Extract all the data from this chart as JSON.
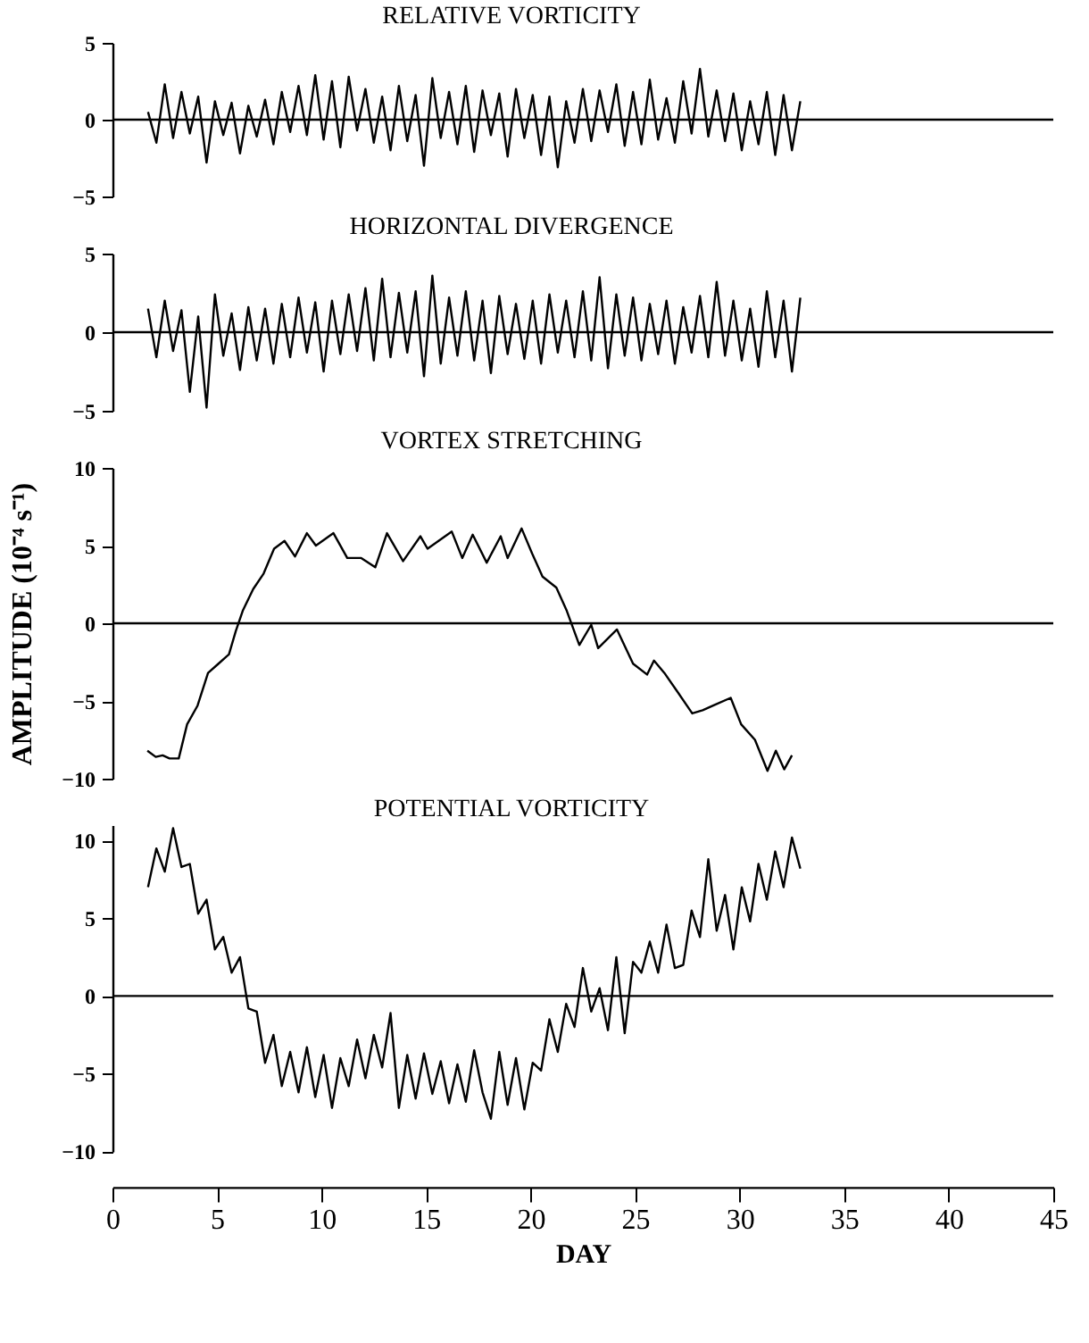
{
  "chart_data": [
    {
      "type": "line",
      "title": "RELATIVE VORTICITY",
      "xlim": [
        0,
        45
      ],
      "ylim": [
        -5,
        5
      ],
      "yticks": [
        -5,
        0,
        5
      ],
      "tick_labels": "y",
      "ref_lines": [
        {
          "axis": "y",
          "value": 0,
          "label": null,
          "color": "#000000"
        }
      ],
      "x": [
        1.7,
        2.1,
        2.5,
        2.9,
        3.3,
        3.7,
        4.1,
        4.5,
        4.9,
        5.3,
        5.7,
        6.1,
        6.5,
        6.9,
        7.3,
        7.7,
        8.1,
        8.5,
        8.9,
        9.3,
        9.7,
        10.1,
        10.5,
        10.9,
        11.3,
        11.7,
        12.1,
        12.5,
        12.9,
        13.3,
        13.7,
        14.1,
        14.5,
        14.9,
        15.3,
        15.7,
        16.1,
        16.5,
        16.9,
        17.3,
        17.7,
        18.1,
        18.5,
        18.9,
        19.3,
        19.7,
        20.1,
        20.5,
        20.9,
        21.3,
        21.7,
        22.1,
        22.5,
        22.9,
        23.3,
        23.7,
        24.1,
        24.5,
        24.9,
        25.3,
        25.7,
        26.1,
        26.5,
        26.9,
        27.3,
        27.7,
        28.1,
        28.5,
        28.9,
        29.3,
        29.7,
        30.1,
        30.5,
        30.9,
        31.3,
        31.7,
        32.1,
        32.5,
        32.9
      ],
      "series": [
        {
          "color": "#000000",
          "values": [
            0.5,
            -1.5,
            2.3,
            -1.2,
            1.8,
            -0.9,
            1.5,
            -2.8,
            1.2,
            -1.0,
            1.1,
            -2.2,
            0.9,
            -1.1,
            1.3,
            -1.6,
            1.8,
            -0.8,
            2.2,
            -1.0,
            2.9,
            -1.3,
            2.5,
            -1.8,
            2.8,
            -0.7,
            2.0,
            -1.5,
            1.5,
            -2.0,
            2.2,
            -1.4,
            1.6,
            -3.0,
            2.7,
            -1.2,
            1.8,
            -1.6,
            2.2,
            -2.1,
            1.9,
            -1.0,
            1.7,
            -2.4,
            2.0,
            -1.2,
            1.6,
            -2.3,
            1.5,
            -3.1,
            1.2,
            -1.5,
            2.0,
            -1.4,
            1.9,
            -0.8,
            2.3,
            -1.7,
            1.8,
            -1.6,
            2.6,
            -1.3,
            1.4,
            -1.5,
            2.5,
            -0.9,
            3.3,
            -1.1,
            1.9,
            -1.4,
            1.7,
            -2.0,
            1.2,
            -1.6,
            1.8,
            -2.3,
            1.6,
            -2.0,
            1.2
          ]
        }
      ]
    },
    {
      "type": "line",
      "title": "HORIZONTAL DIVERGENCE",
      "xlim": [
        0,
        45
      ],
      "ylim": [
        -5,
        5
      ],
      "yticks": [
        -5,
        0,
        5
      ],
      "tick_labels": "y",
      "ref_lines": [
        {
          "axis": "y",
          "value": 0,
          "label": null,
          "color": "#000000"
        }
      ],
      "x": [
        1.7,
        2.1,
        2.5,
        2.9,
        3.3,
        3.7,
        4.1,
        4.5,
        4.9,
        5.3,
        5.7,
        6.1,
        6.5,
        6.9,
        7.3,
        7.7,
        8.1,
        8.5,
        8.9,
        9.3,
        9.7,
        10.1,
        10.5,
        10.9,
        11.3,
        11.7,
        12.1,
        12.5,
        12.9,
        13.3,
        13.7,
        14.1,
        14.5,
        14.9,
        15.3,
        15.7,
        16.1,
        16.5,
        16.9,
        17.3,
        17.7,
        18.1,
        18.5,
        18.9,
        19.3,
        19.7,
        20.1,
        20.5,
        20.9,
        21.3,
        21.7,
        22.1,
        22.5,
        22.9,
        23.3,
        23.7,
        24.1,
        24.5,
        24.9,
        25.3,
        25.7,
        26.1,
        26.5,
        26.9,
        27.3,
        27.7,
        28.1,
        28.5,
        28.9,
        29.3,
        29.7,
        30.1,
        30.5,
        30.9,
        31.3,
        31.7,
        32.1,
        32.5,
        32.9
      ],
      "series": [
        {
          "color": "#000000",
          "values": [
            1.5,
            -1.6,
            2.0,
            -1.2,
            1.4,
            -3.8,
            1.0,
            -4.8,
            2.4,
            -1.5,
            1.2,
            -2.4,
            1.6,
            -1.8,
            1.5,
            -2.0,
            1.8,
            -1.6,
            2.2,
            -1.3,
            1.9,
            -2.5,
            2.0,
            -1.4,
            2.4,
            -1.2,
            2.8,
            -1.8,
            3.4,
            -1.6,
            2.5,
            -1.3,
            2.6,
            -2.8,
            3.6,
            -2.0,
            2.2,
            -1.5,
            2.6,
            -1.8,
            2.0,
            -2.6,
            2.3,
            -1.4,
            1.8,
            -1.7,
            2.0,
            -2.0,
            2.4,
            -1.3,
            2.0,
            -1.6,
            2.6,
            -1.8,
            3.5,
            -2.3,
            2.4,
            -1.5,
            2.2,
            -1.8,
            1.8,
            -1.4,
            2.0,
            -2.0,
            1.6,
            -1.3,
            2.3,
            -1.6,
            3.2,
            -1.5,
            2.0,
            -1.8,
            1.5,
            -2.2,
            2.6,
            -1.6,
            2.0,
            -2.5,
            2.2
          ]
        }
      ]
    },
    {
      "type": "line",
      "title": "VORTEX STRETCHING",
      "ylabel": "AMPLITUDE (10⁻⁴ s⁻¹)",
      "xlim": [
        0,
        45
      ],
      "ylim": [
        -10,
        10
      ],
      "yticks": [
        -10,
        -5,
        0,
        5,
        10
      ],
      "tick_labels": "y",
      "ref_lines": [
        {
          "axis": "y",
          "value": 0,
          "label": null,
          "color": "#000000"
        }
      ],
      "x": [
        1.67,
        2.07,
        2.4,
        2.73,
        3.17,
        3.57,
        4.07,
        4.57,
        5.07,
        5.57,
        5.9,
        6.23,
        6.73,
        7.23,
        7.73,
        8.23,
        8.73,
        9.3,
        9.73,
        10.57,
        11.23,
        11.9,
        12.57,
        13.13,
        13.9,
        14.73,
        15.07,
        16.23,
        16.73,
        17.23,
        17.9,
        18.57,
        18.9,
        19.57,
        20.07,
        20.57,
        21.23,
        21.73,
        22.33,
        22.9,
        23.23,
        24.13,
        24.9,
        25.57,
        25.9,
        26.4,
        27.07,
        27.73,
        28.23,
        28.73,
        29.57,
        30.07,
        30.73,
        31.33,
        31.73,
        32.13,
        32.5
      ],
      "series": [
        {
          "color": "#000000",
          "values": [
            -8.2,
            -8.6,
            -8.5,
            -8.7,
            -8.7,
            -6.5,
            -5.3,
            -3.2,
            -2.6,
            -2.0,
            -0.5,
            0.8,
            2.2,
            3.2,
            4.8,
            5.3,
            4.3,
            5.8,
            5.0,
            5.8,
            4.2,
            4.2,
            3.6,
            5.8,
            4.0,
            5.6,
            4.8,
            5.9,
            4.2,
            5.7,
            3.9,
            5.6,
            4.2,
            6.1,
            4.5,
            3.0,
            2.3,
            0.8,
            -1.4,
            -0.1,
            -1.6,
            -0.4,
            -2.6,
            -3.3,
            -2.4,
            -3.2,
            -4.5,
            -5.8,
            -5.6,
            -5.3,
            -4.8,
            -6.5,
            -7.5,
            -9.5,
            -8.2,
            -9.4,
            -8.5
          ]
        }
      ]
    },
    {
      "type": "line",
      "title": "POTENTIAL VORTICITY",
      "xlabel": "DAY",
      "xlim": [
        0,
        45
      ],
      "xticks": [
        0,
        5,
        10,
        15,
        20,
        25,
        30,
        35,
        40,
        45
      ],
      "ylim": [
        -10,
        11
      ],
      "yticks": [
        -10,
        -5,
        0,
        5,
        10
      ],
      "ref_lines": [
        {
          "axis": "y",
          "value": 0,
          "label": null,
          "color": "#000000"
        }
      ],
      "x": [
        1.7,
        2.1,
        2.5,
        2.9,
        3.3,
        3.7,
        4.1,
        4.5,
        4.9,
        5.3,
        5.7,
        6.1,
        6.5,
        6.9,
        7.3,
        7.7,
        8.1,
        8.5,
        8.9,
        9.3,
        9.7,
        10.1,
        10.5,
        10.9,
        11.3,
        11.7,
        12.1,
        12.5,
        12.9,
        13.3,
        13.7,
        14.1,
        14.5,
        14.9,
        15.3,
        15.7,
        16.1,
        16.5,
        16.9,
        17.3,
        17.7,
        18.1,
        18.5,
        18.9,
        19.3,
        19.7,
        20.1,
        20.5,
        20.9,
        21.3,
        21.7,
        22.1,
        22.5,
        22.9,
        23.3,
        23.7,
        24.1,
        24.5,
        24.9,
        25.3,
        25.7,
        26.1,
        26.5,
        26.9,
        27.3,
        27.7,
        28.1,
        28.5,
        28.9,
        29.3,
        29.7,
        30.1,
        30.5,
        30.9,
        31.3,
        31.7,
        32.1,
        32.5,
        32.9
      ],
      "series": [
        {
          "color": "#000000",
          "values": [
            7.0,
            9.5,
            8.0,
            10.8,
            8.3,
            8.5,
            5.3,
            6.2,
            3.0,
            3.8,
            1.5,
            2.5,
            -0.8,
            -1.0,
            -4.3,
            -2.5,
            -5.8,
            -3.6,
            -6.2,
            -3.3,
            -6.5,
            -3.8,
            -7.2,
            -4.0,
            -5.8,
            -2.8,
            -5.3,
            -2.5,
            -4.6,
            -1.1,
            -7.2,
            -3.8,
            -6.6,
            -3.7,
            -6.3,
            -4.2,
            -6.9,
            -4.4,
            -6.8,
            -3.5,
            -6.2,
            -7.9,
            -3.6,
            -7.0,
            -4.0,
            -7.3,
            -4.3,
            -4.8,
            -1.5,
            -3.6,
            -0.5,
            -2.0,
            1.8,
            -1.0,
            0.5,
            -2.2,
            2.5,
            -2.4,
            2.2,
            1.5,
            3.5,
            1.5,
            4.6,
            1.8,
            2.0,
            5.5,
            3.8,
            8.8,
            4.2,
            6.5,
            3.0,
            7.0,
            4.8,
            8.5,
            6.2,
            9.3,
            7.0,
            10.2,
            8.2
          ]
        }
      ]
    }
  ]
}
